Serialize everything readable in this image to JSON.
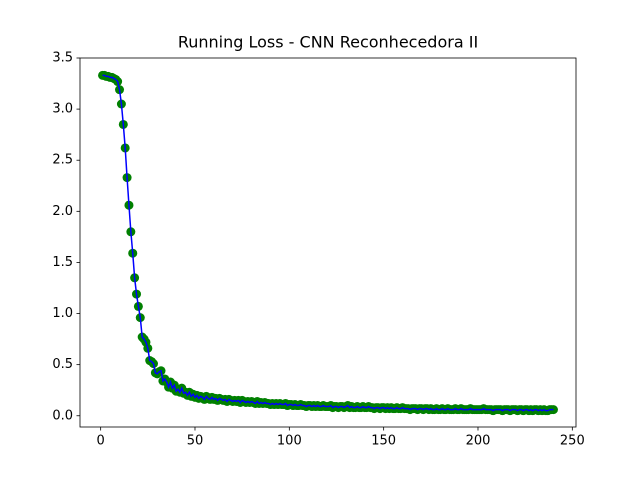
{
  "chart_data": {
    "type": "line",
    "title": "Running Loss - CNN Reconhecedora II",
    "x": [
      1,
      2,
      3,
      4,
      5,
      6,
      7,
      8,
      9,
      10,
      11,
      12,
      13,
      14,
      15,
      16,
      17,
      18,
      19,
      20,
      21,
      22,
      23,
      24,
      25,
      26,
      27,
      28,
      29,
      30,
      31,
      32,
      33,
      34,
      35,
      36,
      37,
      38,
      39,
      40,
      41,
      42,
      43,
      44,
      45,
      46,
      47,
      48,
      49,
      50,
      51,
      52,
      53,
      54,
      55,
      56,
      57,
      58,
      59,
      60,
      61,
      62,
      63,
      64,
      65,
      66,
      67,
      68,
      69,
      70,
      71,
      72,
      73,
      74,
      75,
      76,
      77,
      78,
      79,
      80,
      81,
      82,
      83,
      84,
      85,
      86,
      87,
      88,
      89,
      90,
      91,
      92,
      93,
      94,
      95,
      96,
      97,
      98,
      99,
      100,
      101,
      102,
      103,
      104,
      105,
      106,
      107,
      108,
      109,
      110,
      111,
      112,
      113,
      114,
      115,
      116,
      117,
      118,
      119,
      120,
      121,
      122,
      123,
      124,
      125,
      126,
      127,
      128,
      129,
      130,
      131,
      132,
      133,
      134,
      135,
      136,
      137,
      138,
      139,
      140,
      141,
      142,
      143,
      144,
      145,
      146,
      147,
      148,
      149,
      150,
      151,
      152,
      153,
      154,
      155,
      156,
      157,
      158,
      159,
      160,
      161,
      162,
      163,
      164,
      165,
      166,
      167,
      168,
      169,
      170,
      171,
      172,
      173,
      174,
      175,
      176,
      177,
      178,
      179,
      180,
      181,
      182,
      183,
      184,
      185,
      186,
      187,
      188,
      189,
      190,
      191,
      192,
      193,
      194,
      195,
      196,
      197,
      198,
      199,
      200,
      201,
      202,
      203,
      204,
      205,
      206,
      207,
      208,
      209,
      210,
      211,
      212,
      213,
      214,
      215,
      216,
      217,
      218,
      219,
      220,
      221,
      222,
      223,
      224,
      225,
      226,
      227,
      228,
      229,
      230,
      231,
      232,
      233,
      234,
      235,
      236,
      237,
      238,
      239,
      240
    ],
    "values": [
      3.33,
      3.33,
      3.32,
      3.32,
      3.31,
      3.31,
      3.3,
      3.29,
      3.27,
      3.19,
      3.05,
      2.85,
      2.62,
      2.33,
      2.06,
      1.8,
      1.59,
      1.35,
      1.19,
      1.07,
      0.96,
      0.77,
      0.75,
      0.72,
      0.66,
      0.54,
      0.53,
      0.51,
      0.42,
      0.41,
      0.43,
      0.44,
      0.34,
      0.36,
      0.33,
      0.28,
      0.33,
      0.27,
      0.3,
      0.24,
      0.26,
      0.23,
      0.27,
      0.22,
      0.23,
      0.2,
      0.23,
      0.19,
      0.21,
      0.18,
      0.2,
      0.17,
      0.19,
      0.18,
      0.16,
      0.19,
      0.17,
      0.16,
      0.18,
      0.16,
      0.17,
      0.15,
      0.17,
      0.16,
      0.15,
      0.16,
      0.14,
      0.16,
      0.15,
      0.14,
      0.15,
      0.14,
      0.15,
      0.13,
      0.15,
      0.14,
      0.13,
      0.14,
      0.13,
      0.14,
      0.13,
      0.12,
      0.14,
      0.12,
      0.13,
      0.12,
      0.13,
      0.12,
      0.12,
      0.11,
      0.12,
      0.11,
      0.12,
      0.11,
      0.12,
      0.11,
      0.11,
      0.12,
      0.1,
      0.11,
      0.11,
      0.1,
      0.11,
      0.1,
      0.1,
      0.11,
      0.1,
      0.1,
      0.09,
      0.1,
      0.1,
      0.09,
      0.1,
      0.09,
      0.1,
      0.09,
      0.09,
      0.1,
      0.09,
      0.09,
      0.09,
      0.1,
      0.08,
      0.09,
      0.09,
      0.08,
      0.09,
      0.09,
      0.08,
      0.09,
      0.1,
      0.08,
      0.09,
      0.08,
      0.08,
      0.09,
      0.08,
      0.08,
      0.09,
      0.08,
      0.08,
      0.09,
      0.08,
      0.08,
      0.07,
      0.08,
      0.08,
      0.07,
      0.08,
      0.08,
      0.07,
      0.08,
      0.07,
      0.08,
      0.07,
      0.07,
      0.08,
      0.07,
      0.07,
      0.08,
      0.07,
      0.07,
      0.07,
      0.06,
      0.07,
      0.07,
      0.07,
      0.06,
      0.07,
      0.07,
      0.06,
      0.07,
      0.07,
      0.06,
      0.07,
      0.06,
      0.06,
      0.07,
      0.06,
      0.06,
      0.07,
      0.06,
      0.06,
      0.07,
      0.06,
      0.06,
      0.06,
      0.07,
      0.06,
      0.06,
      0.07,
      0.06,
      0.06,
      0.06,
      0.06,
      0.07,
      0.06,
      0.06,
      0.06,
      0.06,
      0.06,
      0.06,
      0.07,
      0.06,
      0.06,
      0.06,
      0.06,
      0.05,
      0.06,
      0.06,
      0.06,
      0.06,
      0.05,
      0.06,
      0.06,
      0.06,
      0.05,
      0.06,
      0.06,
      0.06,
      0.05,
      0.06,
      0.06,
      0.05,
      0.06,
      0.06,
      0.05,
      0.06,
      0.05,
      0.06,
      0.06,
      0.05,
      0.06,
      0.05,
      0.06,
      0.05,
      0.05,
      0.06,
      0.06,
      0.06
    ],
    "color": "#0000ff",
    "marker_color": "#008000",
    "markers": true,
    "xlim": [
      -10.95,
      251.95
    ],
    "xticks": [
      0,
      50,
      100,
      150,
      200,
      250
    ],
    "ylim": [
      -0.11,
      3.5
    ],
    "yticks": [
      {
        "value": 0,
        "label": "0.0"
      },
      0.5,
      {
        "value": 1,
        "label": "1.0"
      },
      1.5,
      {
        "value": 2,
        "label": "2.0"
      },
      2.5,
      {
        "value": 3,
        "label": "3.0"
      },
      3.5
    ],
    "grid": false
  }
}
